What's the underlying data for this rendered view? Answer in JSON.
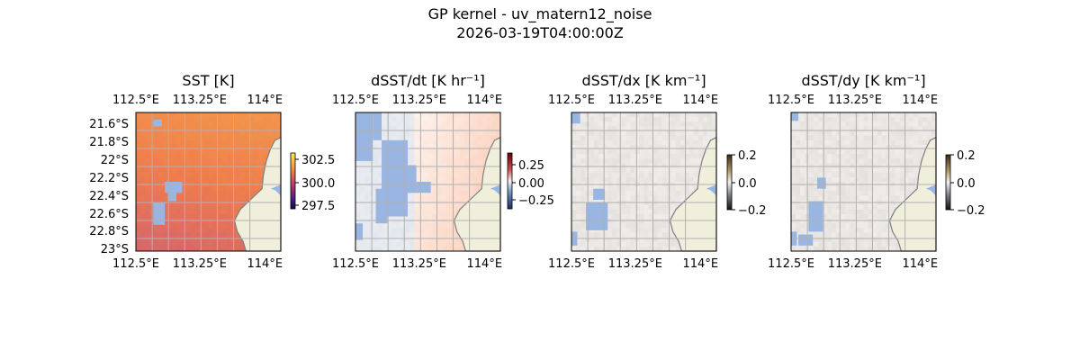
{
  "figure": {
    "title": "GP kernel - uv_matern12_noise",
    "timestamp": "2026-03-19T04:00:00Z"
  },
  "colors": {
    "land": "#efefdb",
    "nan_mask": "#99b6e2",
    "grid": "#b0b0b0",
    "coast": "#7f7f7f",
    "sst_low": "#c7577a",
    "sst_mid": "#f07d4c",
    "sst_high": "#f8e94a",
    "dt_pos": "#fbd2bd",
    "dt_neg": "#c5d7ee",
    "grad_bg": "#efecea"
  },
  "chart_data": [
    {
      "type": "heatmap",
      "title": "SST [K]",
      "xlabel": "",
      "ylabel": "",
      "x_ticks": [
        "112.5°E",
        "113.25°E",
        "114°E"
      ],
      "y_ticks": [
        "21.6°S",
        "21.8°S",
        "22°S",
        "22.2°S",
        "22.4°S",
        "22.6°S",
        "22.8°S",
        "23°S"
      ],
      "colorbar": {
        "ticks": [
          "302.5",
          "300.0",
          "297.5"
        ],
        "range": [
          296.9,
          303.5
        ],
        "colormap": "plasma-like"
      }
    },
    {
      "type": "heatmap",
      "title": "dSST/dt [K hr⁻¹]",
      "xlabel": "",
      "ylabel": "",
      "x_ticks": [
        "112.5°E",
        "113.25°E",
        "114°E"
      ],
      "colorbar": {
        "ticks": [
          "0.25",
          "0.00",
          "−0.25"
        ],
        "range": [
          -0.4,
          0.4
        ],
        "colormap": "diverging red-blue"
      }
    },
    {
      "type": "heatmap",
      "title": "dSST/dx [K km⁻¹]",
      "xlabel": "",
      "ylabel": "",
      "x_ticks": [
        "112.5°E",
        "113.25°E",
        "114°E"
      ],
      "colorbar": {
        "ticks": [
          "0.2",
          "0.0",
          "−0.2"
        ],
        "range": [
          -0.2,
          0.2
        ],
        "colormap": "diverging brown-grey"
      }
    },
    {
      "type": "heatmap",
      "title": "dSST/dy [K km⁻¹]",
      "xlabel": "",
      "ylabel": "",
      "x_ticks": [
        "112.5°E",
        "113.25°E",
        "114°E"
      ],
      "colorbar": {
        "ticks": [
          "0.2",
          "0.0",
          "−0.2"
        ],
        "range": [
          -0.2,
          0.2
        ],
        "colormap": "diverging brown-grey"
      }
    }
  ]
}
